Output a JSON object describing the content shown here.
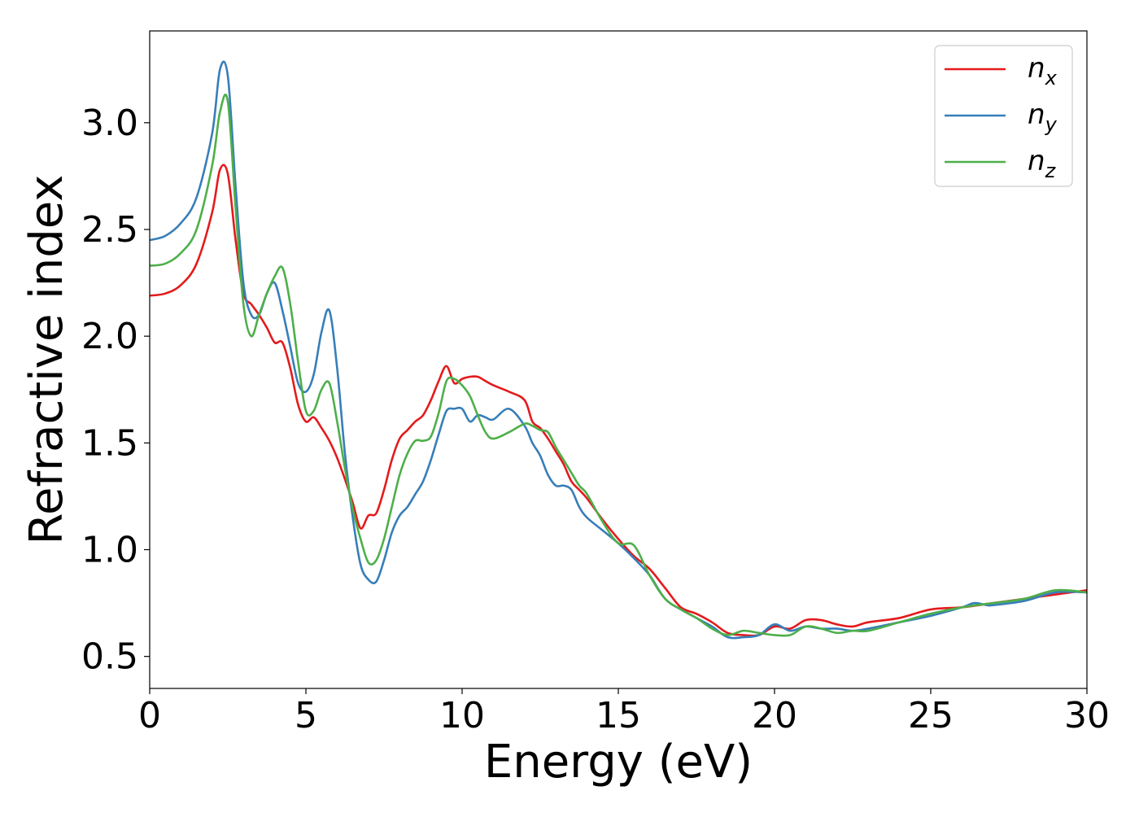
{
  "chart_data": {
    "type": "line",
    "xlabel": "Energy (eV)",
    "ylabel": "Refractive index",
    "xlim": [
      0,
      30
    ],
    "ylim": [
      0.35,
      3.43
    ],
    "xticks": [
      0,
      5,
      10,
      15,
      20,
      25,
      30
    ],
    "xtick_labels": [
      "0",
      "5",
      "10",
      "15",
      "20",
      "25",
      "30"
    ],
    "yticks": [
      0.5,
      1.0,
      1.5,
      2.0,
      2.5,
      3.0
    ],
    "ytick_labels": [
      "0.5",
      "1.0",
      "1.5",
      "2.0",
      "2.5",
      "3.0"
    ],
    "grid": false,
    "legend_position": "top-right",
    "series": [
      {
        "name": "n_x",
        "legend_base": "n",
        "legend_sub": "x",
        "color": "#e41a1c",
        "x": [
          0,
          0.5,
          1.0,
          1.5,
          2.0,
          2.25,
          2.5,
          2.75,
          3.0,
          3.25,
          3.5,
          3.75,
          4.0,
          4.25,
          4.5,
          4.75,
          5.0,
          5.25,
          5.5,
          5.75,
          6.0,
          6.25,
          6.5,
          6.75,
          7.0,
          7.25,
          7.5,
          7.75,
          8.0,
          8.25,
          8.5,
          8.75,
          9.0,
          9.25,
          9.5,
          9.75,
          10.0,
          10.25,
          10.5,
          10.75,
          11.0,
          11.5,
          12.0,
          12.25,
          12.5,
          12.75,
          13.0,
          13.25,
          13.5,
          13.75,
          14.0,
          14.5,
          15.0,
          15.5,
          16.0,
          16.5,
          17.0,
          17.5,
          18.0,
          18.5,
          19.0,
          19.5,
          20.0,
          20.5,
          21.0,
          21.5,
          22.0,
          22.5,
          23.0,
          24.0,
          25.0,
          26.0,
          27.0,
          28.0,
          29.0,
          30.0
        ],
        "y": [
          2.19,
          2.2,
          2.24,
          2.34,
          2.58,
          2.78,
          2.76,
          2.45,
          2.2,
          2.15,
          2.1,
          2.04,
          1.97,
          1.97,
          1.85,
          1.68,
          1.6,
          1.62,
          1.57,
          1.51,
          1.43,
          1.33,
          1.22,
          1.1,
          1.16,
          1.17,
          1.28,
          1.42,
          1.52,
          1.56,
          1.6,
          1.63,
          1.7,
          1.79,
          1.86,
          1.78,
          1.8,
          1.81,
          1.81,
          1.79,
          1.77,
          1.74,
          1.7,
          1.6,
          1.57,
          1.52,
          1.46,
          1.4,
          1.32,
          1.28,
          1.24,
          1.14,
          1.05,
          0.97,
          0.91,
          0.82,
          0.73,
          0.7,
          0.66,
          0.61,
          0.6,
          0.6,
          0.64,
          0.63,
          0.67,
          0.67,
          0.65,
          0.64,
          0.66,
          0.68,
          0.72,
          0.73,
          0.75,
          0.77,
          0.79,
          0.81
        ]
      },
      {
        "name": "n_y",
        "legend_base": "n",
        "legend_sub": "y",
        "color": "#377eb8",
        "x": [
          0,
          0.5,
          1.0,
          1.5,
          2.0,
          2.25,
          2.5,
          2.75,
          3.0,
          3.25,
          3.5,
          3.75,
          4.0,
          4.25,
          4.5,
          4.75,
          5.0,
          5.25,
          5.5,
          5.75,
          6.0,
          6.25,
          6.5,
          6.75,
          7.0,
          7.25,
          7.5,
          7.75,
          8.0,
          8.25,
          8.5,
          8.75,
          9.0,
          9.25,
          9.5,
          9.75,
          10.0,
          10.25,
          10.5,
          10.75,
          11.0,
          11.5,
          12.0,
          12.25,
          12.5,
          12.75,
          13.0,
          13.25,
          13.5,
          13.75,
          14.0,
          14.5,
          15.0,
          15.5,
          16.0,
          16.5,
          17.0,
          17.5,
          18.0,
          18.5,
          19.0,
          19.5,
          20.0,
          20.5,
          21.0,
          21.5,
          22.0,
          22.5,
          23.0,
          24.0,
          25.0,
          26.0,
          26.4,
          26.8,
          27.0,
          28.0,
          29.0,
          30.0
        ],
        "y": [
          2.45,
          2.47,
          2.53,
          2.65,
          2.95,
          3.25,
          3.22,
          2.7,
          2.25,
          2.1,
          2.1,
          2.2,
          2.25,
          2.12,
          1.95,
          1.78,
          1.74,
          1.82,
          2.02,
          2.12,
          1.85,
          1.45,
          1.15,
          0.93,
          0.86,
          0.85,
          0.95,
          1.08,
          1.16,
          1.2,
          1.26,
          1.32,
          1.42,
          1.54,
          1.65,
          1.66,
          1.66,
          1.6,
          1.63,
          1.62,
          1.61,
          1.66,
          1.58,
          1.5,
          1.44,
          1.35,
          1.3,
          1.3,
          1.28,
          1.2,
          1.15,
          1.09,
          1.03,
          0.96,
          0.88,
          0.77,
          0.72,
          0.68,
          0.64,
          0.59,
          0.59,
          0.6,
          0.65,
          0.62,
          0.64,
          0.63,
          0.63,
          0.62,
          0.63,
          0.66,
          0.69,
          0.73,
          0.75,
          0.74,
          0.74,
          0.76,
          0.8,
          0.8
        ]
      },
      {
        "name": "n_z",
        "legend_base": "n",
        "legend_sub": "z",
        "color": "#4daf4a",
        "x": [
          0,
          0.5,
          1.0,
          1.5,
          2.0,
          2.25,
          2.5,
          2.75,
          3.0,
          3.25,
          3.5,
          3.75,
          4.0,
          4.25,
          4.5,
          4.75,
          5.0,
          5.25,
          5.5,
          5.75,
          6.0,
          6.25,
          6.5,
          6.75,
          7.0,
          7.25,
          7.5,
          7.75,
          8.0,
          8.25,
          8.5,
          8.75,
          9.0,
          9.25,
          9.5,
          9.75,
          10.0,
          10.25,
          10.5,
          10.75,
          11.0,
          11.5,
          12.0,
          12.25,
          12.5,
          12.75,
          13.0,
          13.25,
          13.5,
          13.75,
          14.0,
          14.5,
          15.0,
          15.5,
          16.0,
          16.5,
          17.0,
          17.5,
          18.0,
          18.5,
          19.0,
          19.5,
          20.0,
          20.5,
          21.0,
          21.5,
          22.0,
          22.5,
          23.0,
          24.0,
          25.0,
          26.0,
          27.0,
          28.0,
          29.0,
          30.0
        ],
        "y": [
          2.33,
          2.34,
          2.39,
          2.5,
          2.8,
          3.05,
          3.1,
          2.6,
          2.15,
          2.0,
          2.1,
          2.2,
          2.28,
          2.32,
          2.15,
          1.88,
          1.65,
          1.65,
          1.75,
          1.78,
          1.6,
          1.38,
          1.19,
          1.05,
          0.94,
          0.95,
          1.05,
          1.2,
          1.35,
          1.45,
          1.51,
          1.51,
          1.53,
          1.64,
          1.79,
          1.8,
          1.77,
          1.72,
          1.63,
          1.55,
          1.52,
          1.55,
          1.59,
          1.58,
          1.56,
          1.55,
          1.48,
          1.42,
          1.36,
          1.3,
          1.26,
          1.13,
          1.03,
          1.02,
          0.88,
          0.77,
          0.72,
          0.68,
          0.63,
          0.6,
          0.62,
          0.61,
          0.6,
          0.6,
          0.64,
          0.63,
          0.61,
          0.62,
          0.62,
          0.66,
          0.7,
          0.73,
          0.75,
          0.77,
          0.81,
          0.8
        ]
      }
    ]
  }
}
